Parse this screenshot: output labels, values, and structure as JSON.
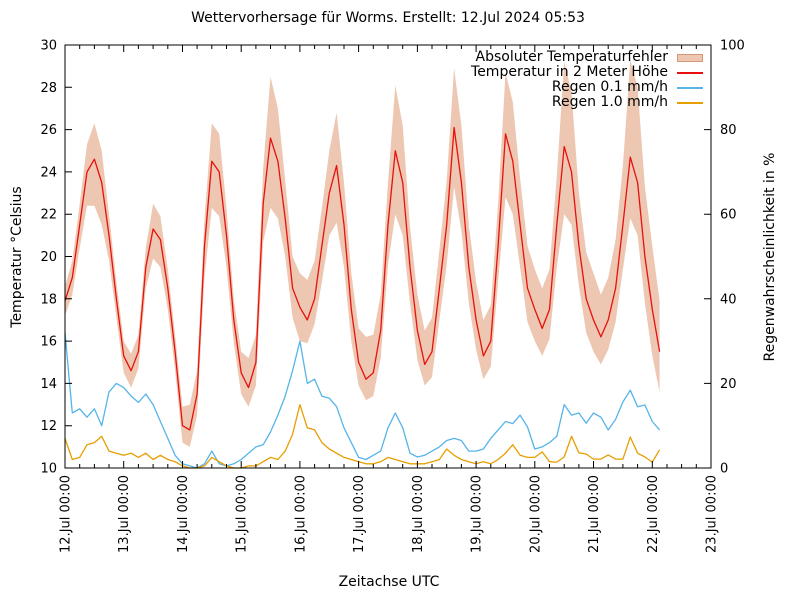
{
  "title": "Wettervorhersage für Worms. Erstellt: 12.Jul 2024 05:53",
  "chart_data": {
    "type": "line",
    "title": "Wettervorhersage für Worms. Erstellt: 12.Jul 2024 05:53",
    "xlabel": "Zeitachse UTC",
    "ylabel_left": "Temperatur °Celsius",
    "ylabel_right": "Regenwahrscheinlichkeit in %",
    "grid": false,
    "legend_position": "top-right",
    "x_days_span": 11,
    "sample_interval_hours": 3,
    "x_tick_labels": [
      "12.Jul 00:00",
      "13.Jul 00:00",
      "14.Jul 00:00",
      "15.Jul 00:00",
      "16.Jul 00:00",
      "17.Jul 00:00",
      "18.Jul 00:00",
      "19.Jul 00:00",
      "20.Jul 00:00",
      "21.Jul 00:00",
      "22.Jul 00:00",
      "23.Jul 00:00"
    ],
    "x_minor_tick_hours": 6,
    "y_left": {
      "min": 10,
      "max": 30,
      "step": 2
    },
    "y_right": {
      "min": 0,
      "max": 100,
      "step": 20
    },
    "series": [
      {
        "name": "Absoluter Temperaturfehler",
        "type": "band",
        "axis": "left",
        "fill": "#edc7b2",
        "swatch_border": "#d29a76",
        "upper": [
          18.6,
          19.8,
          22.5,
          25.3,
          26.3,
          25.0,
          22.0,
          18.8,
          16.0,
          15.4,
          16.3,
          20.4,
          22.5,
          21.9,
          19.4,
          16.3,
          12.9,
          13.0,
          14.6,
          21.8,
          26.3,
          25.8,
          22.3,
          18.0,
          15.5,
          15.2,
          16.3,
          24.2,
          28.5,
          27.0,
          23.6,
          20.0,
          19.2,
          18.9,
          19.8,
          22.3,
          25.0,
          26.8,
          23.5,
          19.2,
          16.6,
          16.2,
          16.3,
          18.2,
          23.5,
          28.1,
          26.2,
          21.4,
          18.2,
          16.5,
          17.1,
          20.3,
          23.6,
          28.9,
          26.2,
          21.5,
          18.8,
          17.0,
          17.7,
          22.5,
          28.7,
          27.3,
          23.7,
          20.5,
          19.4,
          18.5,
          19.4,
          23.8,
          29.2,
          27.8,
          23.0,
          20.2,
          19.2,
          18.2,
          19.0,
          20.8,
          24.3,
          29.3,
          28.0,
          23.3,
          20.5,
          17.9
        ],
        "lower": [
          17.2,
          18.2,
          20.4,
          22.4,
          22.4,
          21.5,
          19.8,
          17.1,
          14.5,
          13.8,
          14.7,
          18.5,
          19.9,
          19.5,
          17.5,
          14.6,
          11.2,
          11.0,
          12.5,
          19.0,
          22.3,
          21.9,
          19.5,
          15.9,
          13.5,
          12.9,
          13.9,
          20.7,
          22.3,
          21.8,
          20.0,
          17.1,
          16.0,
          15.9,
          16.8,
          18.8,
          21.0,
          21.6,
          19.5,
          16.0,
          13.9,
          13.2,
          13.4,
          15.2,
          19.6,
          22.0,
          21.0,
          17.8,
          15.1,
          13.9,
          14.3,
          17.0,
          19.6,
          23.3,
          21.2,
          17.8,
          15.6,
          14.2,
          14.8,
          18.8,
          22.8,
          22.0,
          19.5,
          16.9,
          16.0,
          15.3,
          16.1,
          19.5,
          22.0,
          21.5,
          18.6,
          16.4,
          15.5,
          14.9,
          15.6,
          16.9,
          19.4,
          21.8,
          21.0,
          17.8,
          15.3,
          13.6
        ]
      },
      {
        "name": "Temperatur in 2 Meter Höhe",
        "type": "line",
        "axis": "left",
        "color": "#e8100c",
        "values": [
          17.9,
          19.0,
          21.5,
          24.0,
          24.6,
          23.5,
          21.0,
          18.0,
          15.3,
          14.6,
          15.5,
          19.5,
          21.3,
          20.8,
          18.5,
          15.5,
          12.0,
          11.8,
          13.5,
          20.5,
          24.5,
          24.0,
          21.0,
          17.0,
          14.5,
          13.8,
          15.0,
          22.5,
          25.6,
          24.5,
          21.8,
          18.5,
          17.6,
          17.0,
          18.0,
          20.5,
          23.0,
          24.3,
          21.5,
          17.5,
          15.0,
          14.2,
          14.5,
          16.5,
          21.5,
          25.0,
          23.5,
          19.5,
          16.5,
          14.9,
          15.5,
          18.5,
          21.5,
          26.1,
          23.5,
          19.5,
          17.0,
          15.3,
          16.0,
          20.5,
          25.8,
          24.5,
          21.5,
          18.5,
          17.5,
          16.6,
          17.5,
          21.5,
          25.2,
          24.0,
          20.5,
          18.0,
          17.0,
          16.2,
          17.0,
          18.5,
          21.5,
          24.7,
          23.5,
          20.0,
          17.5,
          15.5
        ]
      },
      {
        "name": "Regen 0.1 mm/h",
        "type": "line",
        "axis": "right",
        "color": "#56b4e9",
        "values": [
          32,
          13,
          14,
          12,
          14,
          10,
          18,
          20,
          19,
          17,
          15.5,
          17.5,
          15,
          11,
          7,
          3,
          1,
          0.5,
          0,
          1,
          4,
          1,
          0.5,
          1,
          2,
          3.5,
          5,
          5.5,
          8.5,
          12.5,
          17,
          23,
          30,
          20,
          21,
          17,
          16.5,
          14.5,
          9.5,
          6,
          2.5,
          2,
          3,
          4,
          9.5,
          13,
          9.5,
          3.5,
          2.6,
          3,
          4,
          5,
          6.5,
          7,
          6.5,
          4,
          4,
          4.5,
          7,
          9,
          11,
          10.5,
          12.5,
          9.7,
          4.5,
          5,
          6,
          7.5,
          15,
          12.5,
          13,
          10.6,
          13,
          12,
          9,
          11.5,
          15.6,
          18.4,
          14.5,
          14.9,
          11,
          9
        ]
      },
      {
        "name": "Regen 1.0 mm/h",
        "type": "line",
        "axis": "right",
        "color": "#e69f00",
        "values": [
          7,
          2,
          2.5,
          5.5,
          6,
          7.5,
          4,
          3.5,
          3,
          3.5,
          2.5,
          3.5,
          2,
          3,
          2,
          1.5,
          0.5,
          0,
          0,
          0.5,
          2.5,
          1.5,
          0.5,
          0,
          0,
          0.5,
          0.5,
          1.5,
          2.5,
          2,
          4,
          8,
          15,
          9.5,
          9,
          6,
          4.5,
          3.5,
          2.5,
          2,
          1.5,
          1,
          1,
          1.5,
          2.5,
          2,
          1.5,
          1,
          1,
          1,
          1.5,
          2,
          4.5,
          3,
          2,
          1.5,
          1,
          1.5,
          1,
          2,
          3.5,
          5.5,
          3,
          2.5,
          2.5,
          3.8,
          1.5,
          1.4,
          2.6,
          7.5,
          3.6,
          3.3,
          2.1,
          2.1,
          3.1,
          2.1,
          2.1,
          7.3,
          3.5,
          2.6,
          1.4,
          4.3
        ]
      }
    ]
  }
}
